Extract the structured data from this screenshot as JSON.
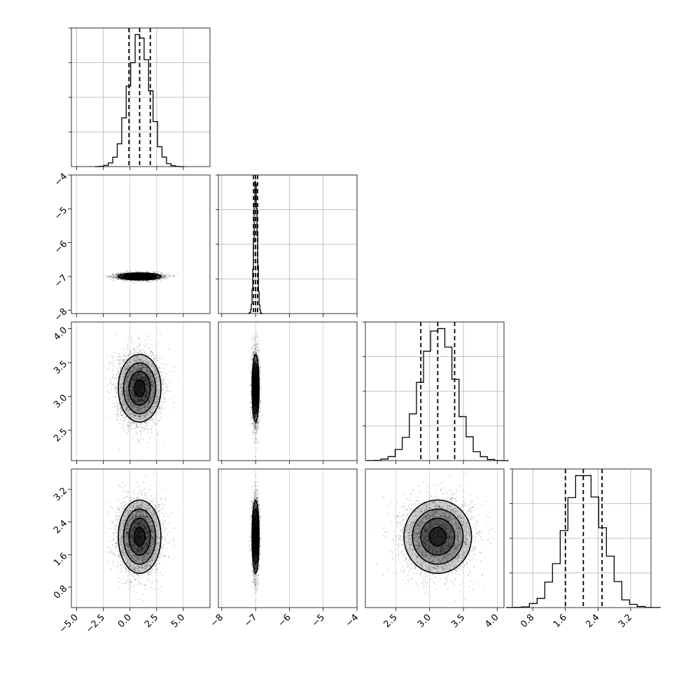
{
  "chart_data": {
    "type": "corner",
    "title": "",
    "grid": true,
    "parameters": [
      {
        "index": 0,
        "mean": 0.9,
        "std": 1.0,
        "range": [
          -5.5,
          7.5
        ],
        "quantiles": [
          -0.1,
          0.9,
          1.9
        ],
        "ticks": [
          -5.0,
          -2.5,
          0.0,
          2.5,
          5.0
        ],
        "tick_labels": [
          "−5.0",
          "−2.5",
          "0.0",
          "2.5",
          "5.0"
        ]
      },
      {
        "index": 1,
        "mean": -7.0,
        "std": 0.05,
        "range": [
          -8.1,
          -4.0
        ],
        "quantiles": [
          -7.06,
          -7.0,
          -6.94
        ],
        "ticks": [
          -8,
          -7,
          -6,
          -5,
          -4
        ],
        "tick_labels": [
          "−8",
          "−7",
          "−6",
          "−5",
          "−4"
        ]
      },
      {
        "index": 2,
        "mean": 3.12,
        "std": 0.25,
        "range": [
          2.05,
          4.1
        ],
        "quantiles": [
          2.87,
          3.12,
          3.37
        ],
        "ticks": [
          2.5,
          3.0,
          3.5,
          4.0
        ],
        "tick_labels": [
          "2.5",
          "3.0",
          "3.5",
          "4.0"
        ]
      },
      {
        "index": 3,
        "mean": 2.04,
        "std": 0.45,
        "range": [
          0.3,
          3.7
        ],
        "quantiles": [
          1.6,
          2.04,
          2.5
        ],
        "ticks": [
          0.8,
          1.6,
          2.4,
          3.2
        ],
        "tick_labels": [
          "0.8",
          "1.6",
          "2.4",
          "3.2"
        ]
      }
    ],
    "y_tick_labels": {
      "1": [
        "−4",
        "−5",
        "−6",
        "−7",
        "−8"
      ],
      "2": [
        "4.0",
        "3.5",
        "3.0",
        "2.5"
      ],
      "3": [
        "3.2",
        "2.4",
        "1.6",
        "0.8"
      ]
    },
    "x_tick_labels": {
      "0": [
        "−5.0",
        "−2.5",
        "0.0",
        "2.5",
        "5.0"
      ],
      "1": [
        "−8",
        "−7",
        "−6",
        "−5",
        "−4"
      ],
      "2": [
        "2.5",
        "3.0",
        "3.5",
        "4.0"
      ],
      "3": [
        "0.8",
        "1.6",
        "2.4",
        "3.2"
      ]
    },
    "colors": {
      "hist": "#000000",
      "scatter": "#000000",
      "grid": "#b0b0b0",
      "quantile": "#000000"
    }
  }
}
